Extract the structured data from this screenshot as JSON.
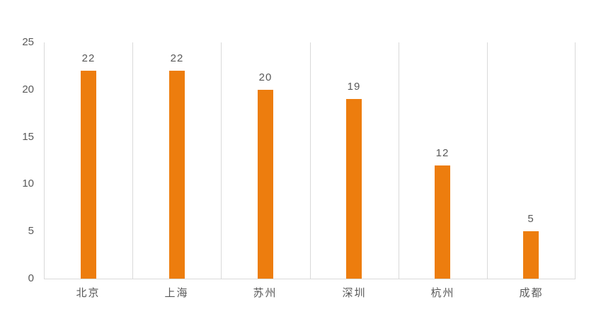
{
  "chart_data": {
    "type": "bar",
    "title": "",
    "xlabel": "",
    "ylabel": "",
    "categories": [
      "北京",
      "上海",
      "苏州",
      "深圳",
      "杭州",
      "成都"
    ],
    "values": [
      22,
      22,
      20,
      19,
      12,
      5
    ],
    "data_labels": [
      "22",
      "22",
      "20",
      "19",
      "12",
      "5"
    ],
    "ylim": [
      0,
      25
    ],
    "y_ticks": [
      0,
      5,
      10,
      15,
      20,
      25
    ],
    "legend": "none",
    "grid": "vertical-only",
    "colors": {
      "bar": "#ED7D0E",
      "text": "#595959",
      "grid_line": "#D9D9D9",
      "axis_line": "#D9D9D9",
      "background": "#FFFFFF"
    }
  }
}
